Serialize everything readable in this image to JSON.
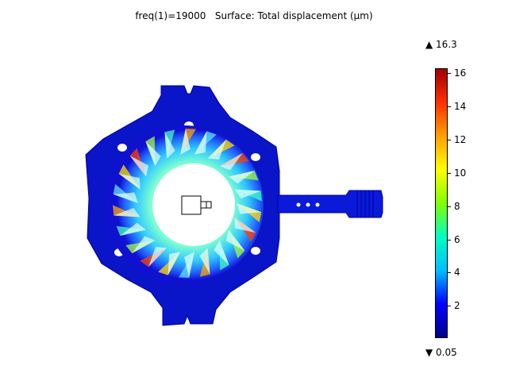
{
  "plot": {
    "title": "freq(1)=19000   Surface: Total displacement (μm)"
  },
  "colorbar": {
    "max_label": "▲ 16.3",
    "min_label": "▼ 0.05",
    "ticks": [
      {
        "value": 16,
        "label": "16"
      },
      {
        "value": 14,
        "label": "14"
      },
      {
        "value": 12,
        "label": "12"
      },
      {
        "value": 10,
        "label": "10"
      },
      {
        "value": 8,
        "label": "8"
      },
      {
        "value": 6,
        "label": "6"
      },
      {
        "value": 4,
        "label": "4"
      },
      {
        "value": 2,
        "label": "2"
      }
    ],
    "min": 0.05,
    "max": 16.3,
    "colors": [
      "#00008f",
      "#0000ff",
      "#00bfff",
      "#00ffbf",
      "#7fff00",
      "#ffff00",
      "#ffa000",
      "#ff3000",
      "#a00000"
    ]
  }
}
